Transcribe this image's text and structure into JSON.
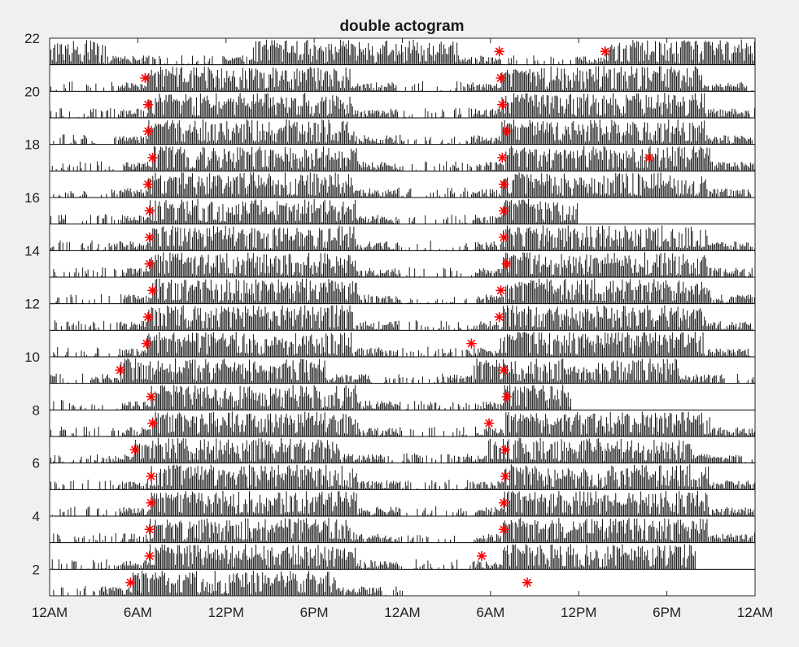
{
  "chart_data": {
    "type": "bar",
    "title": "double actogram",
    "xlabel": "",
    "ylabel": "",
    "xlim": [
      0,
      48
    ],
    "ylim": [
      1,
      22
    ],
    "x_ticks": [
      {
        "hour": 0,
        "label": "12AM"
      },
      {
        "hour": 6,
        "label": "6AM"
      },
      {
        "hour": 12,
        "label": "12PM"
      },
      {
        "hour": 18,
        "label": "6PM"
      },
      {
        "hour": 24,
        "label": "12AM"
      },
      {
        "hour": 30,
        "label": "6AM"
      },
      {
        "hour": 36,
        "label": "12PM"
      },
      {
        "hour": 42,
        "label": "6PM"
      },
      {
        "hour": 48,
        "label": "12AM"
      }
    ],
    "y_ticks": [
      {
        "value": 2,
        "label": "2"
      },
      {
        "value": 4,
        "label": "4"
      },
      {
        "value": 6,
        "label": "6"
      },
      {
        "value": 8,
        "label": "8"
      },
      {
        "value": 10,
        "label": "10"
      },
      {
        "value": 12,
        "label": "12"
      },
      {
        "value": 14,
        "label": "14"
      },
      {
        "value": 16,
        "label": "16"
      },
      {
        "value": 18,
        "label": "18"
      },
      {
        "value": 20,
        "label": "20"
      },
      {
        "value": 22,
        "label": "22"
      }
    ],
    "rows": [
      {
        "day": 1,
        "active": [
          [
            0,
            4
          ],
          [
            4,
            6
          ],
          [
            8.5,
            20
          ],
          [
            9,
            13
          ],
          [
            13,
            19.5
          ]
        ],
        "onset_marks": [
          5.5,
          32.5
        ],
        "data_end": 24
      },
      {
        "day": 2,
        "active": [
          [
            0,
            30.5
          ],
          [
            30.5,
            33
          ],
          [
            33,
            44
          ]
        ],
        "onset_marks": [
          6.8,
          29.4
        ],
        "data_end": 44
      },
      {
        "day": 3,
        "active": [
          [
            0,
            30
          ],
          [
            30,
            36
          ],
          [
            36,
            48
          ]
        ],
        "onset_marks": [
          6.8,
          30.9
        ],
        "data_end": 48
      },
      {
        "day": 4,
        "active": [
          [
            0,
            30
          ],
          [
            30,
            36
          ],
          [
            36,
            48
          ]
        ],
        "onset_marks": [
          6.9,
          30.9
        ],
        "data_end": 48
      },
      {
        "day": 5,
        "active": [
          [
            0,
            30
          ],
          [
            30,
            36
          ],
          [
            36,
            48
          ]
        ],
        "onset_marks": [
          6.9,
          31.0
        ],
        "data_end": 48
      },
      {
        "day": 6,
        "active": [
          [
            0,
            30
          ],
          [
            30,
            36
          ],
          [
            36,
            48
          ]
        ],
        "onset_marks": [
          5.8,
          31.0
        ],
        "data_end": 48
      },
      {
        "day": 7,
        "active": [
          [
            0,
            7
          ],
          [
            7,
            11.5
          ],
          [
            11.5,
            29.5
          ],
          [
            29.5,
            48
          ]
        ],
        "onset_marks": [
          7.0,
          29.9
        ],
        "data_end": 48
      },
      {
        "day": 8,
        "active": [
          [
            0,
            8
          ],
          [
            8,
            20
          ],
          [
            20,
            30
          ],
          [
            30,
            35.5
          ]
        ],
        "onset_marks": [
          6.9,
          31.1
        ],
        "data_end": 35.5
      },
      {
        "day": 9,
        "active": [
          [
            0,
            7
          ],
          [
            7,
            24
          ],
          [
            24,
            30
          ],
          [
            30,
            48
          ]
        ],
        "onset_marks": [
          4.8,
          30.9
        ],
        "data_end": 48
      },
      {
        "day": 10,
        "active": [
          [
            0,
            30
          ],
          [
            30,
            36
          ],
          [
            36,
            48
          ]
        ],
        "onset_marks": [
          6.6,
          28.7
        ],
        "data_end": 48
      },
      {
        "day": 11,
        "active": [
          [
            0,
            30
          ],
          [
            30,
            36
          ],
          [
            36,
            48
          ]
        ],
        "onset_marks": [
          6.7,
          30.6
        ],
        "data_end": 48
      },
      {
        "day": 12,
        "active": [
          [
            0,
            30
          ],
          [
            30,
            36
          ],
          [
            36,
            48
          ]
        ],
        "onset_marks": [
          7.0,
          30.7
        ],
        "data_end": 48
      },
      {
        "day": 13,
        "active": [
          [
            0,
            30
          ],
          [
            30,
            36
          ],
          [
            36,
            48
          ]
        ],
        "onset_marks": [
          6.8,
          31.1
        ],
        "data_end": 48
      },
      {
        "day": 14,
        "active": [
          [
            0,
            7
          ],
          [
            7,
            12
          ],
          [
            12,
            30
          ],
          [
            30,
            48
          ]
        ],
        "onset_marks": [
          6.8,
          30.9
        ],
        "data_end": 48
      },
      {
        "day": 15,
        "active": [
          [
            0,
            30
          ],
          [
            30,
            33
          ],
          [
            33,
            36
          ]
        ],
        "onset_marks": [
          6.8,
          30.9
        ],
        "data_end": 36
      },
      {
        "day": 16,
        "active": [
          [
            0,
            30
          ],
          [
            30,
            36
          ],
          [
            36,
            48
          ]
        ],
        "onset_marks": [
          6.7,
          30.9
        ],
        "data_end": 48
      },
      {
        "day": 17,
        "active": [
          [
            0,
            30
          ],
          [
            30,
            36
          ],
          [
            36,
            48
          ]
        ],
        "onset_marks": [
          7.0,
          30.8
        ],
        "data_end": 48
      },
      {
        "day": 18,
        "active": [
          [
            0,
            30
          ],
          [
            30,
            36
          ],
          [
            36,
            48
          ]
        ],
        "onset_marks": [
          6.7,
          31.1
        ],
        "data_end": 48
      },
      {
        "day": 19,
        "active": [
          [
            0,
            30
          ],
          [
            30,
            36
          ],
          [
            36,
            48
          ]
        ],
        "onset_marks": [
          6.7,
          30.8
        ],
        "data_end": 48
      },
      {
        "day": 20,
        "active": [
          [
            0,
            30
          ],
          [
            30,
            36
          ],
          [
            36,
            48
          ]
        ],
        "onset_marks": [
          6.5,
          30.7
        ],
        "data_end": 48
      },
      {
        "day": 21,
        "active": [
          [
            0,
            30
          ],
          [
            30,
            36
          ],
          [
            36,
            48
          ]
        ],
        "onset_marks": [
          37.8
        ],
        "data_end": 48
      }
    ],
    "extra_marks": [
      {
        "day": 17,
        "hour": 40.8
      },
      {
        "day": 21,
        "hour": 30.6
      }
    ],
    "bar_color": "#000000",
    "marker_color": "#ff0000",
    "marker": "asterisk"
  }
}
